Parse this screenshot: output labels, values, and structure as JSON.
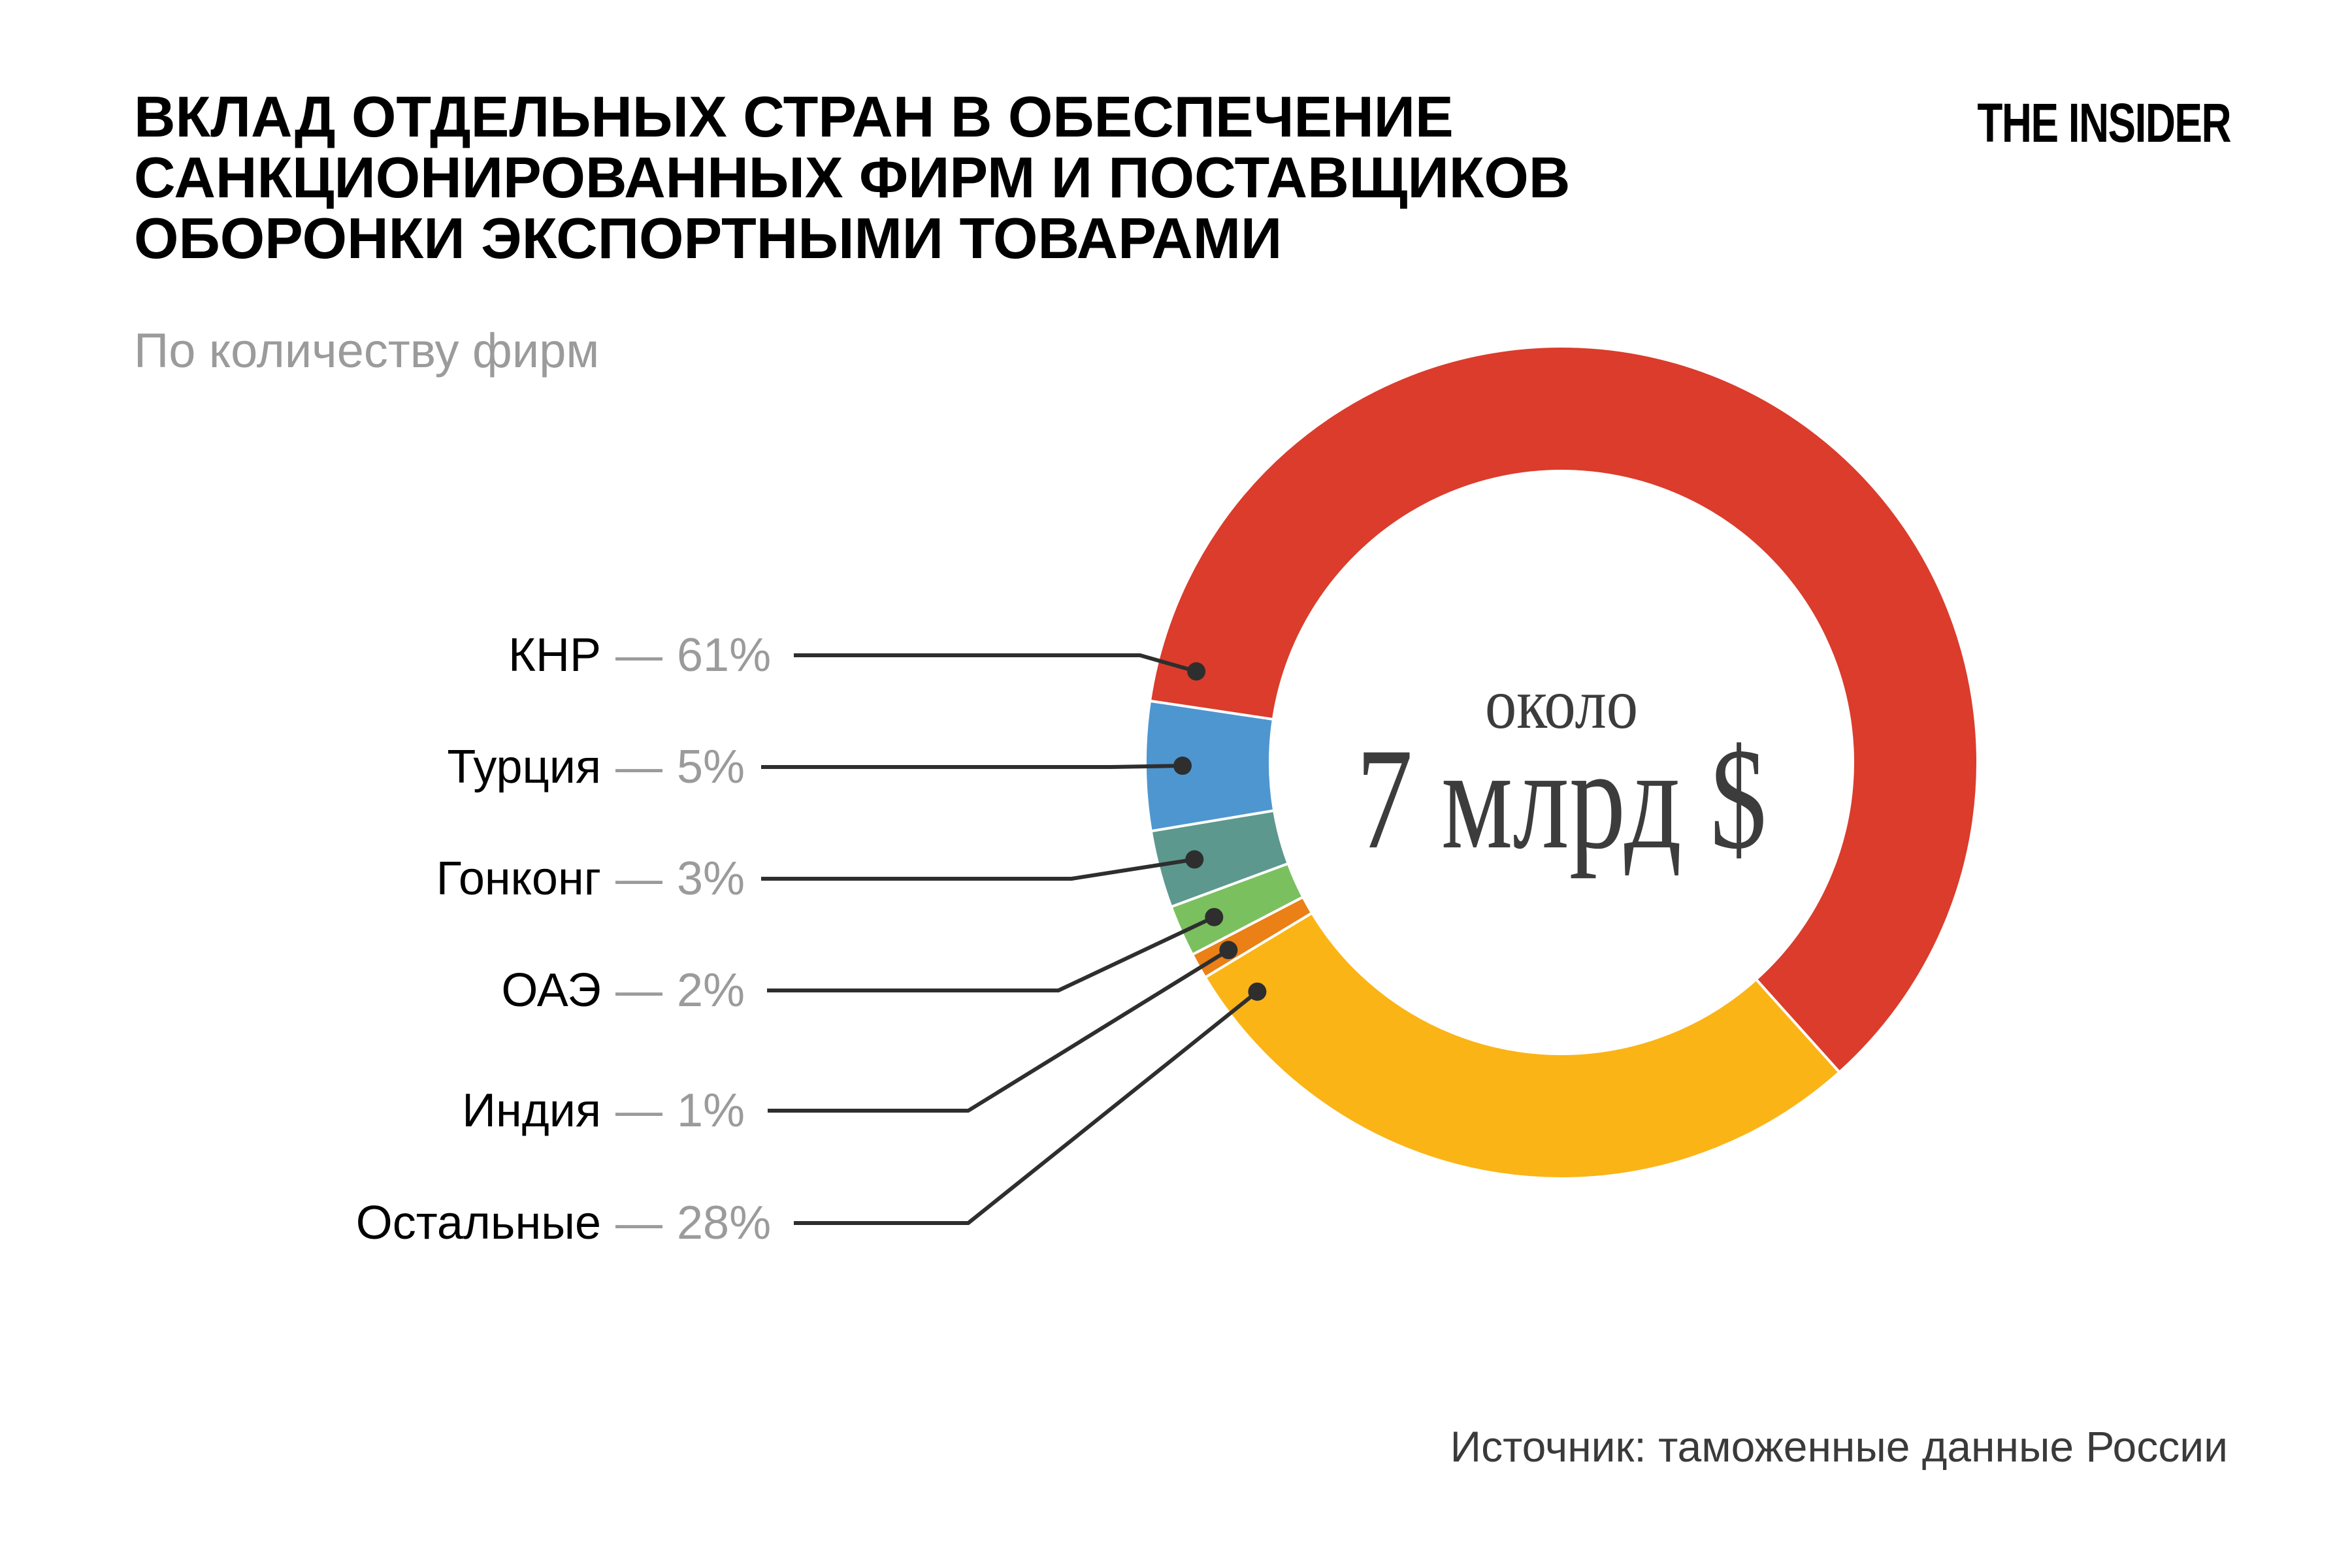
{
  "header": {
    "title_lines": [
      "ВКЛАД ОТДЕЛЬНЫХ СТРАН В ОБЕСПЕЧЕНИЕ",
      "САНКЦИОНИРОВАННЫХ ФИРМ И ПОСТАВЩИКОВ",
      "ОБОРОНКИ ЭКСПОРТНЫМИ ТОВАРАМИ"
    ],
    "subtitle": "По количеству фирм",
    "logo": "THE INSIDER"
  },
  "donut_center": {
    "top": "около",
    "main": "7 млрд $"
  },
  "legend": {
    "separator": "—",
    "items": [
      {
        "label": "КНР",
        "value": "61%"
      },
      {
        "label": "Турция",
        "value": "5%"
      },
      {
        "label": "Гонконг",
        "value": "3%"
      },
      {
        "label": "ОАЭ",
        "value": "2%"
      },
      {
        "label": "Индия",
        "value": "1%"
      },
      {
        "label": "Остальные",
        "value": "28%"
      }
    ]
  },
  "footer": {
    "source": "Источник: таможенные данные России"
  },
  "colors": {
    "knr_red": "#DB3C2C",
    "turkey_blue": "#4E96D0",
    "hongkong_teal": "#5C988E",
    "uae_green": "#7AC05F",
    "india_orange": "#EA8016",
    "others_yellow": "#FBB416",
    "leader_line": "#2E2E2E",
    "muted_gray": "#9B9B9B",
    "center_text": "#3C3C3C"
  },
  "chart_data": {
    "type": "pie",
    "donut": true,
    "title": "Вклад отдельных стран в обеспечение санкционированных фирм и поставщиков оборонки экспортными товарами",
    "subtitle": "По количеству фирм",
    "units": "%",
    "categories": [
      "КНР",
      "Турция",
      "Гонконг",
      "ОАЭ",
      "Индия",
      "Остальные"
    ],
    "values": [
      61,
      5,
      3,
      2,
      1,
      28
    ],
    "colors": [
      "#DB3C2C",
      "#4E96D0",
      "#5C988E",
      "#7AC05F",
      "#EA8016",
      "#FBB416"
    ],
    "center_text": [
      "около",
      "7 млрд $"
    ],
    "legend_position": "left",
    "source": "Источник: таможенные данные России"
  }
}
